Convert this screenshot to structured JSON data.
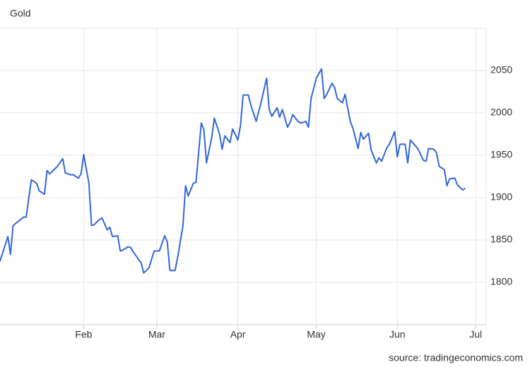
{
  "chart_data": {
    "type": "line",
    "title": "Gold",
    "source": "source: tradingeconomics.com",
    "x": [
      -1,
      2,
      3,
      4,
      8,
      9,
      11,
      13,
      14,
      16,
      17,
      18,
      21,
      23,
      24,
      26,
      27,
      29,
      30,
      31,
      33,
      34,
      35,
      37,
      38,
      40,
      41,
      42,
      44,
      45,
      46,
      48,
      49,
      50,
      52,
      53,
      54,
      56,
      58,
      60,
      62,
      63,
      64,
      66,
      67,
      69,
      70,
      71,
      73,
      74,
      76,
      77,
      78,
      80,
      81,
      83,
      84,
      85,
      87,
      88,
      90,
      91,
      92,
      94,
      95,
      97,
      98,
      99,
      101,
      102,
      103,
      105,
      106,
      107,
      109,
      110,
      111,
      113,
      114,
      116,
      117,
      118,
      120,
      122,
      123,
      124,
      126,
      127,
      128,
      130,
      131,
      133,
      134,
      136,
      137,
      138,
      140,
      141,
      143,
      144,
      145,
      147,
      148,
      150,
      151,
      152,
      154,
      155,
      156,
      158,
      159,
      161,
      162,
      163,
      165,
      166,
      167,
      169,
      170,
      171,
      173,
      174,
      176,
      177
    ],
    "series": [
      {
        "name": "Gold",
        "color": "#3367d6",
        "values": [
          1825,
          1854,
          1833,
          1867,
          1877,
          1877,
          1921,
          1917,
          1908,
          1904,
          1932,
          1928,
          1937,
          1946,
          1929,
          1927,
          1927,
          1923,
          1928,
          1951,
          1917,
          1867,
          1868,
          1874,
          1876,
          1862,
          1865,
          1854,
          1855,
          1837,
          1838,
          1842,
          1841,
          1836,
          1827,
          1823,
          1811,
          1817,
          1837,
          1837,
          1855,
          1848,
          1814,
          1814,
          1830,
          1867,
          1914,
          1902,
          1917,
          1918,
          1988,
          1980,
          1941,
          1971,
          1994,
          1975,
          1957,
          1973,
          1965,
          1981,
          1968,
          1985,
          2021,
          2021,
          2009,
          1990,
          2002,
          2014,
          2041,
          2004,
          1996,
          2006,
          1995,
          2004,
          1983,
          1989,
          1998,
          1990,
          1988,
          1990,
          1983,
          2017,
          2041,
          2052,
          2017,
          2022,
          2035,
          2030,
          2017,
          2012,
          2022,
          1990,
          1982,
          1958,
          1977,
          1969,
          1976,
          1956,
          1941,
          1947,
          1943,
          1959,
          1963,
          1978,
          1948,
          1963,
          1963,
          1941,
          1968,
          1961,
          1957,
          1944,
          1943,
          1958,
          1957,
          1953,
          1937,
          1933,
          1914,
          1922,
          1923,
          1915,
          1909,
          1911
        ]
      }
    ],
    "xlim": [
      -1,
      185
    ],
    "xticks": [
      {
        "value": 31,
        "label": "Feb"
      },
      {
        "value": 59,
        "label": "Mar"
      },
      {
        "value": 90,
        "label": "Apr"
      },
      {
        "value": 120,
        "label": "May"
      },
      {
        "value": 151,
        "label": "Jun"
      },
      {
        "value": 181,
        "label": "Jul"
      }
    ],
    "ylim": [
      1750,
      2100
    ],
    "yticks": [
      1800,
      1850,
      1900,
      1950,
      2000,
      2050
    ],
    "grid": true
  }
}
